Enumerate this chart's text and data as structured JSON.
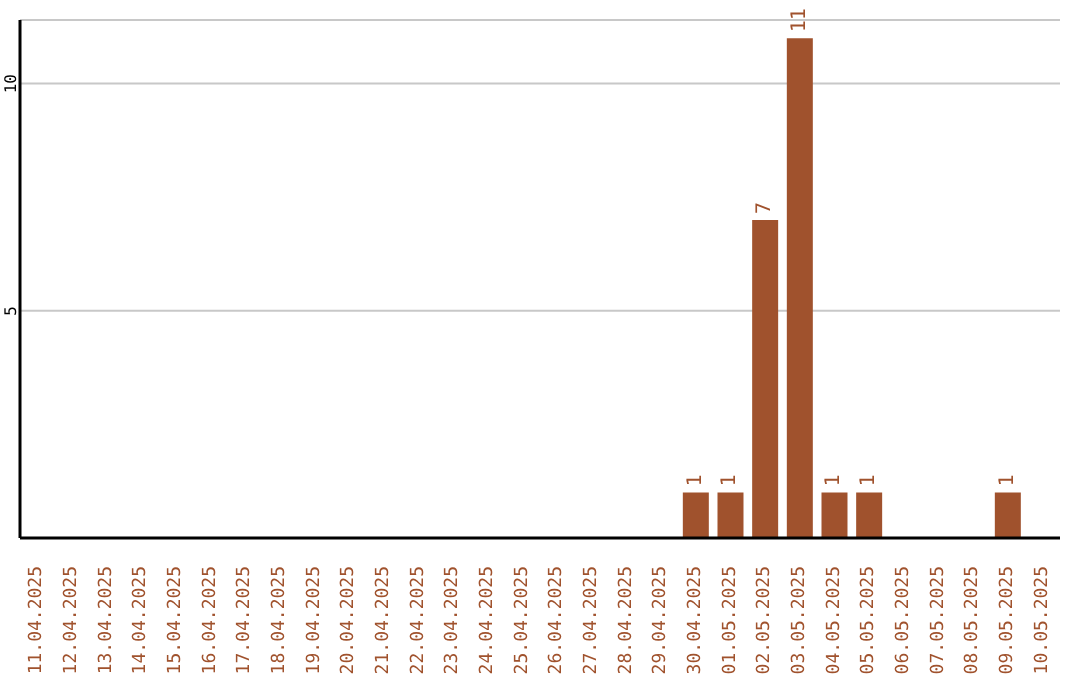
{
  "chart_data": {
    "type": "bar",
    "categories": [
      "11.04.2025",
      "12.04.2025",
      "13.04.2025",
      "14.04.2025",
      "15.04.2025",
      "16.04.2025",
      "17.04.2025",
      "18.04.2025",
      "19.04.2025",
      "20.04.2025",
      "21.04.2025",
      "22.04.2025",
      "23.04.2025",
      "24.04.2025",
      "25.04.2025",
      "26.04.2025",
      "27.04.2025",
      "28.04.2025",
      "29.04.2025",
      "30.04.2025",
      "01.05.2025",
      "02.05.2025",
      "03.05.2025",
      "04.05.2025",
      "05.05.2025",
      "06.05.2025",
      "07.05.2025",
      "08.05.2025",
      "09.05.2025",
      "10.05.2025"
    ],
    "values": [
      0,
      0,
      0,
      0,
      0,
      0,
      0,
      0,
      0,
      0,
      0,
      0,
      0,
      0,
      0,
      0,
      0,
      0,
      0,
      1,
      1,
      7,
      11,
      1,
      1,
      0,
      0,
      0,
      1,
      0
    ],
    "value_labels": [
      null,
      null,
      null,
      null,
      null,
      null,
      null,
      null,
      null,
      null,
      null,
      null,
      null,
      null,
      null,
      null,
      null,
      null,
      null,
      "1",
      "1",
      "7",
      "11",
      "1",
      "1",
      null,
      null,
      null,
      "1",
      null
    ],
    "color": "#a0522d",
    "ylim": [
      0,
      11.4
    ],
    "yticks": [
      5,
      10
    ],
    "grid": "y"
  }
}
